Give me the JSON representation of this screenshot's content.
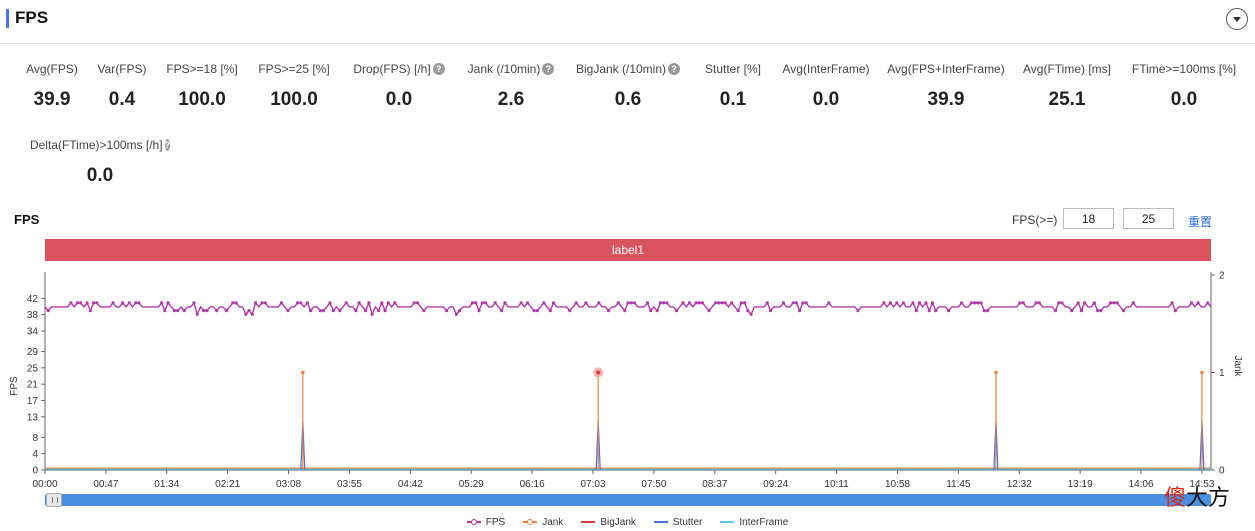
{
  "header": {
    "title": "FPS"
  },
  "metrics": [
    {
      "label": "Avg(FPS)",
      "value": "39.9",
      "help": false
    },
    {
      "label": "Var(FPS)",
      "value": "0.4",
      "help": false
    },
    {
      "label": "FPS>=18 [%]",
      "value": "100.0",
      "help": false
    },
    {
      "label": "FPS>=25 [%]",
      "value": "100.0",
      "help": false
    },
    {
      "label": "Drop(FPS) [/h]",
      "value": "0.0",
      "help": true
    },
    {
      "label": "Jank (/10min)",
      "value": "2.6",
      "help": true
    },
    {
      "label": "BigJank (/10min)",
      "value": "0.6",
      "help": true
    },
    {
      "label": "Stutter [%]",
      "value": "0.1",
      "help": false
    },
    {
      "label": "Avg(InterFrame)",
      "value": "0.0",
      "help": false
    },
    {
      "label": "Avg(FPS+InterFrame)",
      "value": "39.9",
      "help": false
    },
    {
      "label": "Avg(FTime) [ms]",
      "value": "25.1",
      "help": false
    },
    {
      "label": "FTime>=100ms [%]",
      "value": "0.0",
      "help": false
    },
    {
      "label": "Delta(FTime)>100ms [/h]",
      "value": "0.0",
      "help": true
    }
  ],
  "help_glyph": "?",
  "fps_section": {
    "title": "FPS",
    "threshold_label": "FPS(>=)",
    "threshold_low": "18",
    "threshold_high": "25",
    "reset_label": "重置"
  },
  "label_bar": {
    "text": "label1",
    "color": "#d9545c"
  },
  "chart_data": {
    "type": "line",
    "ylabel": "FPS",
    "y2label": "Jank",
    "y_ticks": [
      0,
      4,
      8,
      13,
      17,
      21,
      25,
      29,
      34,
      38,
      42
    ],
    "ylim": [
      0,
      46
    ],
    "y2_ticks": [
      0,
      1,
      2
    ],
    "y2lim": [
      0,
      2
    ],
    "x_ticks": [
      "00:00",
      "00:47",
      "01:34",
      "02:21",
      "03:08",
      "03:55",
      "04:42",
      "05:29",
      "06:16",
      "07:03",
      "07:50",
      "08:37",
      "09:24",
      "10:11",
      "10:58",
      "11:45",
      "12:32",
      "13:19",
      "14:06",
      "14:53"
    ],
    "x_range_seconds": [
      0,
      900
    ],
    "series": [
      {
        "name": "FPS",
        "axis": "left",
        "color": "#b03aa8",
        "approx_mean": 39.9,
        "range": [
          37,
          42
        ]
      },
      {
        "name": "Jank",
        "axis": "right",
        "color": "#f0803c",
        "events": [
          {
            "t": "03:19",
            "value": 1
          },
          {
            "t": "07:07",
            "value": 1
          },
          {
            "t": "12:14",
            "value": 1
          },
          {
            "t": "14:53",
            "value": 1
          }
        ]
      },
      {
        "name": "BigJank",
        "axis": "right",
        "color": "#d93a3a",
        "events": [
          {
            "t": "07:07",
            "value": 1
          }
        ]
      },
      {
        "name": "Stutter",
        "axis": "right",
        "color": "#4a6fd8",
        "events": [
          {
            "t": "03:19",
            "value": 0.5
          },
          {
            "t": "07:07",
            "value": 0.5
          },
          {
            "t": "12:14",
            "value": 0.5
          },
          {
            "t": "14:53",
            "value": 0.5
          }
        ]
      },
      {
        "name": "InterFrame",
        "axis": "right",
        "color": "#5fc8e6",
        "values_constant": 0
      }
    ],
    "grid": false,
    "legend_position": "bottom"
  },
  "watermark": {
    "char1": "傻",
    "char2": "大方"
  }
}
